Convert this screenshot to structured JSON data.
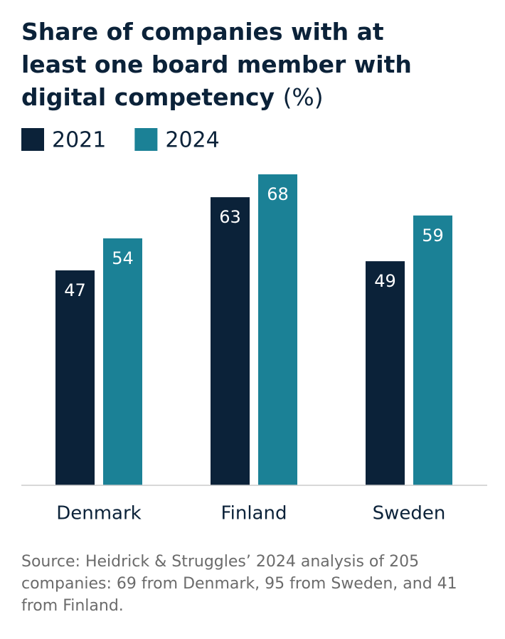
{
  "chart_data": {
    "type": "bar",
    "title": "Share of companies with at least one board member with digital competency",
    "title_unit": "(%)",
    "categories": [
      "Denmark",
      "Finland",
      "Sweden"
    ],
    "series": [
      {
        "name": "2021",
        "color": "#0b2239",
        "values": [
          47,
          63,
          49
        ]
      },
      {
        "name": "2024",
        "color": "#1b8196",
        "values": [
          54,
          68,
          59
        ]
      }
    ],
    "ylim": [
      0,
      68
    ],
    "source": "Source: Heidrick & Struggles’ 2024 analysis of 205 companies: 69 from Denmark, 95 from Sweden, and 41 from Finland."
  }
}
